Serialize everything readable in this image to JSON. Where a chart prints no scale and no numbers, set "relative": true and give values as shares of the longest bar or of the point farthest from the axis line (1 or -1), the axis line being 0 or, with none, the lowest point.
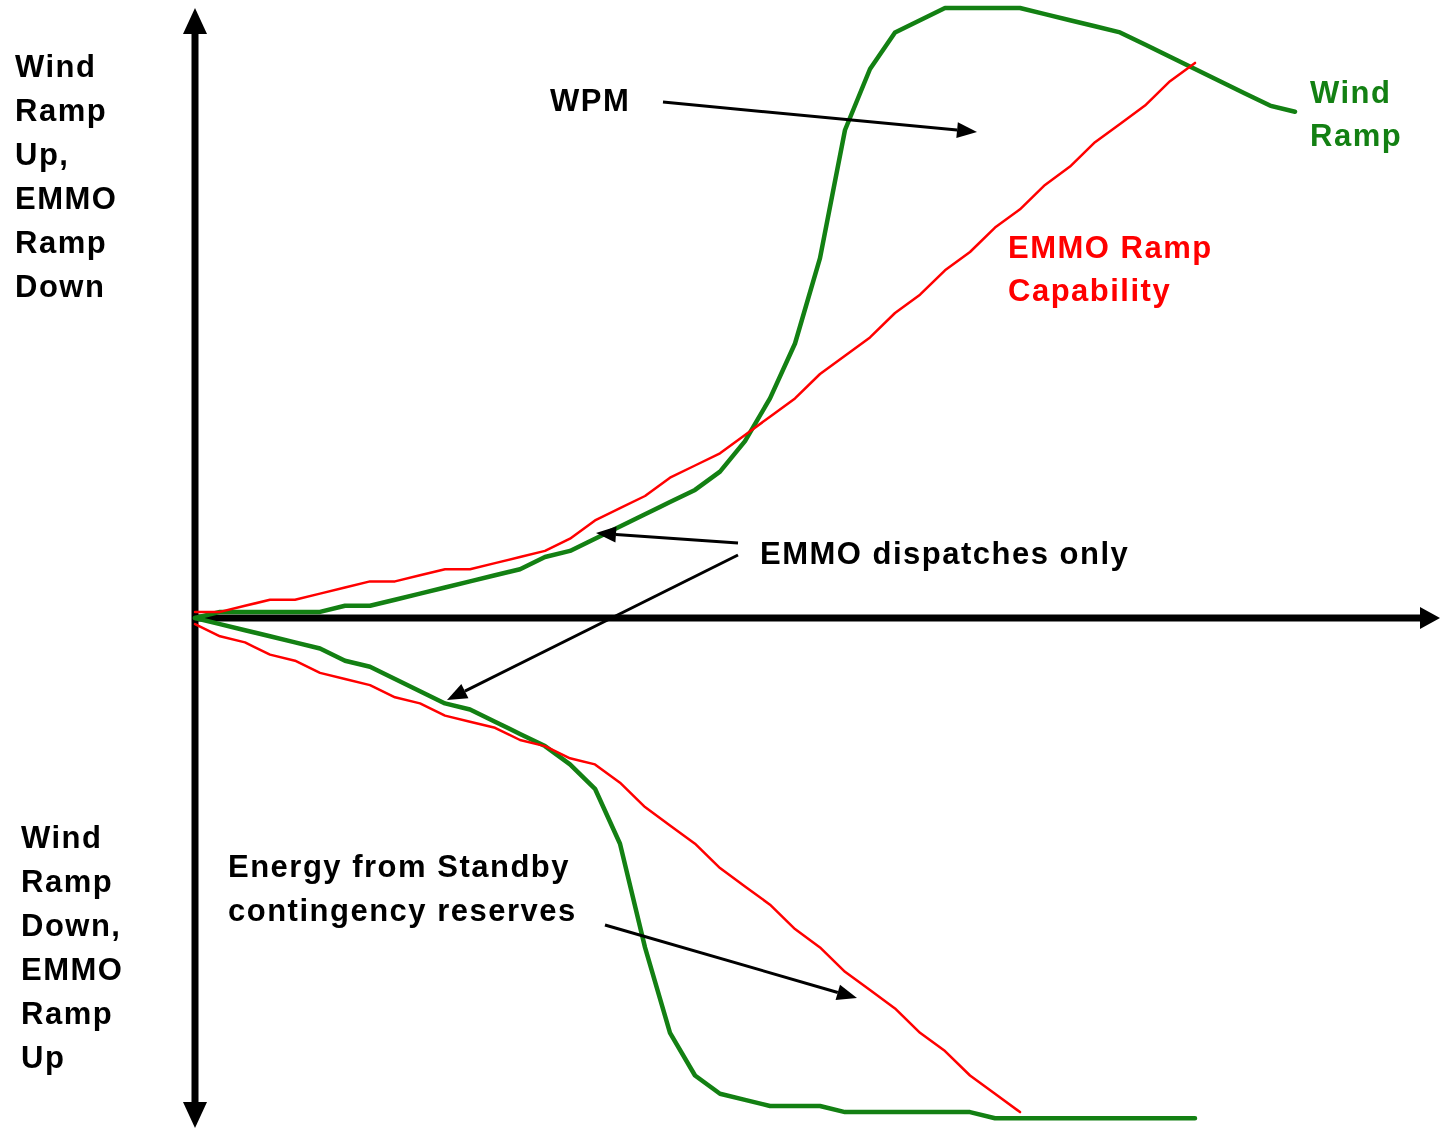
{
  "chart_data": {
    "type": "line",
    "relative": true,
    "legend": false,
    "marker": "none",
    "line_style": "solid",
    "ylabel": "Wind Ramp Up, EMMO Ramp Down",
    "annotations": [
      "Wind Ramp Down, EMMO Ramp Up",
      "WPM",
      "EMMO dispatches only",
      "Energy from Standby contingency reserves"
    ],
    "categories": [
      null,
      null,
      null,
      null,
      null,
      null,
      null,
      null,
      null,
      null,
      null,
      null,
      null,
      null,
      null,
      null,
      null,
      null,
      null,
      null,
      null,
      null,
      null,
      null,
      null,
      null,
      null,
      null,
      null,
      null,
      null,
      null,
      null,
      null,
      null,
      null,
      null,
      null,
      null,
      null,
      null,
      null,
      null,
      null,
      null,
      null,
      null,
      null,
      null,
      null
    ],
    "series": [
      {
        "name": "Wind Ramp",
        "color": "#138013",
        "values": [
          0.0,
          0.01,
          0.01,
          0.01,
          0.01,
          0.01,
          0.02,
          0.02,
          0.03,
          0.04,
          0.05,
          0.06,
          0.07,
          0.08,
          0.1,
          0.11,
          0.13,
          0.15,
          0.17,
          0.19,
          0.21,
          0.24,
          0.29,
          0.36,
          0.45,
          0.59,
          0.8,
          0.9,
          0.96,
          0.98,
          1.0,
          1.0,
          1.0,
          1.0,
          0.99,
          0.98,
          0.97,
          0.96,
          0.94,
          0.92,
          0.9,
          0.88,
          0.86,
          0.84,
          0.83,
          null,
          null,
          null,
          null,
          null
        ]
      },
      {
        "name": "EMMO Ramp Capability",
        "color": "#ff0000",
        "values": [
          0.01,
          0.01,
          0.02,
          0.03,
          0.03,
          0.04,
          0.05,
          0.06,
          0.06,
          0.07,
          0.08,
          0.08,
          0.09,
          0.1,
          0.11,
          0.13,
          0.16,
          0.18,
          0.2,
          0.23,
          0.25,
          0.27,
          0.3,
          0.33,
          0.36,
          0.4,
          0.43,
          0.46,
          0.5,
          0.53,
          0.57,
          0.6,
          0.64,
          0.67,
          0.71,
          0.74,
          0.78,
          0.81,
          0.84,
          0.88,
          0.91,
          null,
          null,
          null,
          null,
          null,
          null,
          null,
          null,
          null
        ]
      },
      {
        "color": "#138013",
        "values": [
          0.0,
          -0.01,
          -0.02,
          -0.03,
          -0.04,
          -0.05,
          -0.07,
          -0.08,
          -0.1,
          -0.12,
          -0.14,
          -0.15,
          -0.17,
          -0.19,
          -0.21,
          -0.24,
          -0.28,
          -0.37,
          -0.54,
          -0.68,
          -0.75,
          -0.78,
          -0.79,
          -0.8,
          -0.8,
          -0.8,
          -0.81,
          -0.81,
          -0.81,
          -0.81,
          -0.81,
          -0.81,
          -0.82,
          -0.82,
          -0.82,
          -0.82,
          -0.82,
          -0.82,
          -0.82,
          -0.82,
          -0.82,
          null,
          null,
          null,
          null,
          null,
          null,
          null,
          null,
          null
        ]
      },
      {
        "color": "#ff0000",
        "values": [
          -0.01,
          -0.03,
          -0.04,
          -0.06,
          -0.07,
          -0.09,
          -0.1,
          -0.11,
          -0.13,
          -0.14,
          -0.16,
          -0.17,
          -0.18,
          -0.2,
          -0.21,
          -0.23,
          -0.24,
          -0.27,
          -0.31,
          -0.34,
          -0.37,
          -0.41,
          -0.44,
          -0.47,
          -0.51,
          -0.54,
          -0.58,
          -0.61,
          -0.64,
          -0.68,
          -0.71,
          -0.75,
          -0.78,
          -0.81,
          null,
          null,
          null,
          null,
          null,
          null,
          null,
          null,
          null,
          null,
          null,
          null,
          null,
          null,
          null,
          null
        ]
      }
    ]
  }
}
